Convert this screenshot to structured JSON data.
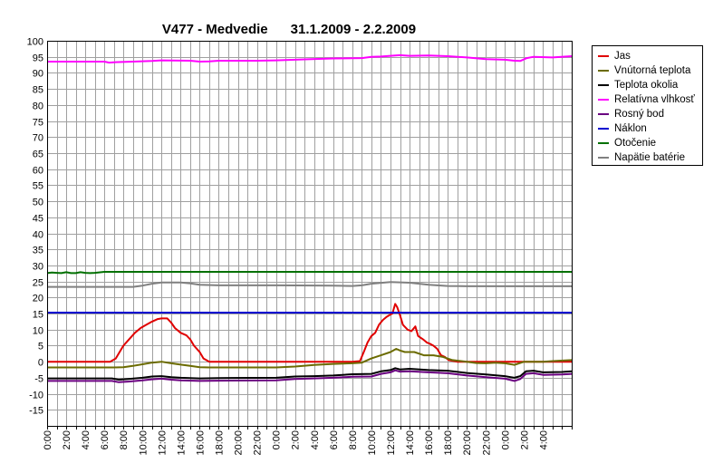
{
  "chart_data": {
    "type": "line",
    "title": "V477 - Medvedie      31.1.2009 - 2.2.2009",
    "xlabel": "",
    "ylabel": "",
    "ylim": [
      -20,
      100
    ],
    "y_ticks": [
      100,
      95,
      90,
      85,
      80,
      75,
      70,
      65,
      60,
      55,
      50,
      45,
      40,
      35,
      30,
      25,
      20,
      15,
      10,
      5,
      0,
      -5,
      -10,
      -15
    ],
    "x_ticks": [
      "0:00",
      "2:00",
      "4:00",
      "6:00",
      "8:00",
      "10:00",
      "12:00",
      "14:00",
      "16:00",
      "18:00",
      "20:00",
      "22:00",
      "0:00",
      "2:00",
      "4:00",
      "6:00",
      "8:00",
      "10:00",
      "12:00",
      "14:00",
      "16:00",
      "18:00",
      "20:00",
      "22:00",
      "0:00",
      "2:00",
      "4:00"
    ],
    "x_unit": "hours since 31.1.2009 0:00",
    "xlim": [
      0,
      55
    ],
    "grid": true,
    "legend_position": "right",
    "series": [
      {
        "name": "Jas",
        "color": "#e00000",
        "points": [
          [
            0,
            0
          ],
          [
            6.6,
            0
          ],
          [
            7.2,
            1
          ],
          [
            7.6,
            3
          ],
          [
            8,
            5
          ],
          [
            8.6,
            7
          ],
          [
            9.2,
            9
          ],
          [
            9.8,
            10.5
          ],
          [
            10.4,
            11.5
          ],
          [
            11,
            12.5
          ],
          [
            11.6,
            13.3
          ],
          [
            12,
            13.5
          ],
          [
            12.6,
            13.5
          ],
          [
            13,
            12.2
          ],
          [
            13.4,
            10.5
          ],
          [
            14,
            9
          ],
          [
            14.6,
            8.2
          ],
          [
            15,
            7
          ],
          [
            15.4,
            5
          ],
          [
            16,
            3
          ],
          [
            16.4,
            1
          ],
          [
            17,
            0
          ],
          [
            32,
            0
          ],
          [
            32.8,
            0.2
          ],
          [
            33.2,
            3
          ],
          [
            33.6,
            6
          ],
          [
            34,
            8
          ],
          [
            34.4,
            9
          ],
          [
            34.8,
            11.5
          ],
          [
            35.2,
            13
          ],
          [
            35.6,
            14
          ],
          [
            35.9,
            14.5
          ],
          [
            36.2,
            15
          ],
          [
            36.5,
            18
          ],
          [
            36.7,
            17
          ],
          [
            37,
            14.5
          ],
          [
            37.3,
            11.5
          ],
          [
            37.8,
            10
          ],
          [
            38.2,
            9.5
          ],
          [
            38.6,
            11
          ],
          [
            38.9,
            8
          ],
          [
            39.4,
            7
          ],
          [
            39.8,
            6
          ],
          [
            40.2,
            5.5
          ],
          [
            40.5,
            5
          ],
          [
            40.9,
            4
          ],
          [
            41.3,
            2
          ],
          [
            41.7,
            1.5
          ],
          [
            42.1,
            0.5
          ],
          [
            43,
            0
          ],
          [
            55,
            0
          ]
        ]
      },
      {
        "name": "Vnútorná teplota",
        "color": "#6b6b00",
        "points": [
          [
            0,
            -1.8
          ],
          [
            7,
            -1.8
          ],
          [
            8,
            -1.7
          ],
          [
            9,
            -1.3
          ],
          [
            10,
            -0.8
          ],
          [
            11,
            -0.3
          ],
          [
            12,
            0
          ],
          [
            13,
            -0.5
          ],
          [
            14,
            -0.9
          ],
          [
            15,
            -1.3
          ],
          [
            16,
            -1.7
          ],
          [
            17,
            -1.8
          ],
          [
            24,
            -1.8
          ],
          [
            26,
            -1.5
          ],
          [
            28,
            -1
          ],
          [
            30,
            -0.7
          ],
          [
            32,
            -0.5
          ],
          [
            33,
            -0.3
          ],
          [
            34,
            1
          ],
          [
            35,
            2
          ],
          [
            36,
            3
          ],
          [
            36.6,
            4
          ],
          [
            37,
            3.5
          ],
          [
            37.5,
            3
          ],
          [
            38.5,
            3
          ],
          [
            39.5,
            2
          ],
          [
            40.5,
            2
          ],
          [
            41.5,
            1.5
          ],
          [
            42.5,
            0.5
          ],
          [
            44,
            0
          ],
          [
            45,
            -0.4
          ],
          [
            46,
            -0.5
          ],
          [
            47,
            -0.3
          ],
          [
            48,
            -0.5
          ],
          [
            49,
            -1
          ],
          [
            50,
            0
          ],
          [
            52,
            0
          ],
          [
            53,
            0.2
          ],
          [
            55,
            0.5
          ]
        ]
      },
      {
        "name": "Teplota okolia",
        "color": "#000000",
        "points": [
          [
            0,
            -5.2
          ],
          [
            6.8,
            -5.2
          ],
          [
            7.5,
            -5.6
          ],
          [
            8.5,
            -5.4
          ],
          [
            10,
            -5
          ],
          [
            11,
            -4.6
          ],
          [
            12,
            -4.5
          ],
          [
            13,
            -4.8
          ],
          [
            14,
            -5
          ],
          [
            16,
            -5.2
          ],
          [
            18,
            -5.1
          ],
          [
            24,
            -5
          ],
          [
            26,
            -4.6
          ],
          [
            28,
            -4.5
          ],
          [
            30,
            -4.3
          ],
          [
            32,
            -3.9
          ],
          [
            34,
            -3.8
          ],
          [
            35,
            -3
          ],
          [
            36,
            -2.6
          ],
          [
            36.5,
            -2
          ],
          [
            37,
            -2.4
          ],
          [
            38,
            -2.2
          ],
          [
            40,
            -2.6
          ],
          [
            42,
            -2.8
          ],
          [
            44,
            -3.5
          ],
          [
            46,
            -4
          ],
          [
            48,
            -4.5
          ],
          [
            48.6,
            -4.8
          ],
          [
            49,
            -5
          ],
          [
            49.6,
            -4.5
          ],
          [
            50.2,
            -3
          ],
          [
            51,
            -2.8
          ],
          [
            52,
            -3.3
          ],
          [
            54,
            -3.2
          ],
          [
            55,
            -3
          ]
        ]
      },
      {
        "name": "Relatívna vlhkosť",
        "color": "#ff00ff",
        "points": [
          [
            0,
            93.5
          ],
          [
            6,
            93.5
          ],
          [
            6.5,
            93.2
          ],
          [
            7,
            93.3
          ],
          [
            9,
            93.5
          ],
          [
            11,
            93.7
          ],
          [
            12,
            93.9
          ],
          [
            15,
            93.8
          ],
          [
            16,
            93.5
          ],
          [
            17,
            93.6
          ],
          [
            18,
            93.8
          ],
          [
            22,
            93.8
          ],
          [
            24,
            93.9
          ],
          [
            27,
            94.2
          ],
          [
            30,
            94.5
          ],
          [
            33,
            94.6
          ],
          [
            34,
            95
          ],
          [
            35,
            95.1
          ],
          [
            36,
            95.3
          ],
          [
            37,
            95.5
          ],
          [
            38,
            95.3
          ],
          [
            40,
            95.4
          ],
          [
            42,
            95.2
          ],
          [
            44,
            94.8
          ],
          [
            46,
            94.3
          ],
          [
            48,
            94.1
          ],
          [
            49,
            93.8
          ],
          [
            49.6,
            93.7
          ],
          [
            50.3,
            94.6
          ],
          [
            51,
            95
          ],
          [
            53,
            94.8
          ],
          [
            55,
            95.2
          ]
        ]
      },
      {
        "name": "Rosný bod",
        "color": "#6a0080",
        "points": [
          [
            0,
            -6
          ],
          [
            6.8,
            -6
          ],
          [
            7.5,
            -6.4
          ],
          [
            8.5,
            -6.2
          ],
          [
            10,
            -5.8
          ],
          [
            11,
            -5.5
          ],
          [
            12,
            -5.3
          ],
          [
            13,
            -5.6
          ],
          [
            14,
            -5.8
          ],
          [
            16,
            -6
          ],
          [
            18,
            -5.9
          ],
          [
            24,
            -5.8
          ],
          [
            26,
            -5.4
          ],
          [
            28,
            -5.2
          ],
          [
            30,
            -5
          ],
          [
            32,
            -4.7
          ],
          [
            34,
            -4.6
          ],
          [
            35,
            -3.8
          ],
          [
            36,
            -3.3
          ],
          [
            36.5,
            -2.7
          ],
          [
            37,
            -3.1
          ],
          [
            38,
            -3
          ],
          [
            40,
            -3.3
          ],
          [
            42,
            -3.6
          ],
          [
            44,
            -4.3
          ],
          [
            46,
            -4.8
          ],
          [
            48,
            -5.3
          ],
          [
            48.6,
            -5.7
          ],
          [
            49,
            -6
          ],
          [
            49.6,
            -5.4
          ],
          [
            50.2,
            -3.8
          ],
          [
            51,
            -3.6
          ],
          [
            52,
            -4.1
          ],
          [
            54,
            -4
          ],
          [
            55,
            -3.8
          ]
        ]
      },
      {
        "name": "Náklon",
        "color": "#0000d0",
        "points": [
          [
            0,
            15.3
          ],
          [
            55,
            15.3
          ]
        ]
      },
      {
        "name": "Otočenie",
        "color": "#007000",
        "points": [
          [
            0,
            27.6
          ],
          [
            0.5,
            27.8
          ],
          [
            1,
            27.7
          ],
          [
            1.5,
            27.6
          ],
          [
            2,
            27.9
          ],
          [
            2.5,
            27.6
          ],
          [
            3,
            27.6
          ],
          [
            3.5,
            27.9
          ],
          [
            4,
            27.7
          ],
          [
            4.5,
            27.6
          ],
          [
            5,
            27.7
          ],
          [
            6,
            28
          ],
          [
            55,
            28
          ]
        ]
      },
      {
        "name": "Napätie batérie",
        "color": "#808080",
        "points": [
          [
            0,
            23.3
          ],
          [
            9,
            23.3
          ],
          [
            10,
            23.7
          ],
          [
            11,
            24.3
          ],
          [
            12,
            24.7
          ],
          [
            14,
            24.7
          ],
          [
            15,
            24.4
          ],
          [
            16,
            24
          ],
          [
            18,
            23.8
          ],
          [
            24,
            23.8
          ],
          [
            30,
            23.7
          ],
          [
            32,
            23.6
          ],
          [
            33,
            23.8
          ],
          [
            34,
            24.3
          ],
          [
            36,
            24.8
          ],
          [
            38,
            24.6
          ],
          [
            40,
            24
          ],
          [
            42,
            23.6
          ],
          [
            44,
            23.5
          ],
          [
            55,
            23.5
          ]
        ]
      }
    ]
  }
}
